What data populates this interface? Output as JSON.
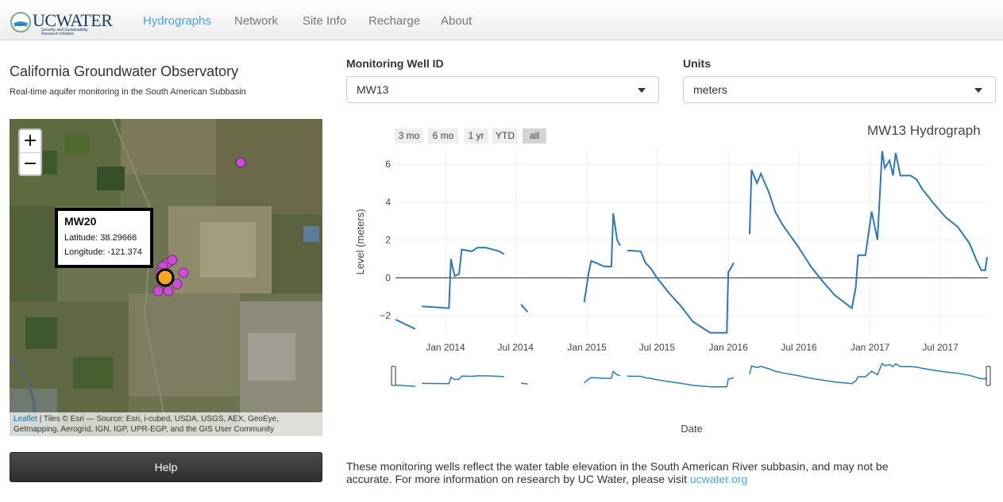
{
  "navbar": {
    "logo_text": "UCWATER",
    "logo_subtitle": "Security and Sustainability Research Initiative",
    "items": [
      {
        "label": "Hydrographs",
        "active": true
      },
      {
        "label": "Network",
        "active": false
      },
      {
        "label": "Site Info",
        "active": false
      },
      {
        "label": "Recharge",
        "active": false
      },
      {
        "label": "About",
        "active": false
      }
    ]
  },
  "sidebar": {
    "title": "California Groundwater Observatory",
    "subtitle": "Real-time aquifer monitoring in the South American Subbasin",
    "map": {
      "zoom_in": "+",
      "zoom_out": "−",
      "popup": {
        "title": "MW20",
        "latitude": "Latitude: 38.29666",
        "longitude": "Longitude: -121.374"
      },
      "attribution_link": "Leaflet",
      "attribution_text": " | Tiles © Esri — Source: Esri, i-cubed, USDA, USGS, AEX, GeoEye, Getmapping, Aerogrid, IGN, IGP, UPR-EGP, and the GIS User Community",
      "marker_colors": {
        "well": "#c74fd1",
        "selected": "#f5a623"
      }
    },
    "help_label": "Help"
  },
  "controls": {
    "well_label": "Monitoring Well ID",
    "well_value": "MW13",
    "units_label": "Units",
    "units_value": "meters"
  },
  "range_buttons": [
    "3 mo",
    "6 mo",
    "1 yr",
    "YTD",
    "all"
  ],
  "range_selected": "all",
  "chart_data": {
    "type": "line",
    "title": "MW13 Hydrograph",
    "xlabel": "Date",
    "ylabel": "Level (meters)",
    "x_ticks": [
      "Jan 2014",
      "Jul 2014",
      "Jan 2015",
      "Jul 2015",
      "Jan 2016",
      "Jul 2016",
      "Jan 2017",
      "Jul 2017"
    ],
    "y_ticks": [
      "−2",
      "0",
      "2",
      "4",
      "6"
    ],
    "ylim": [
      -3.0,
      6.8
    ],
    "line_color": "#2f78b4",
    "segments": [
      [
        [
          "2013-08-25",
          -2.2
        ],
        [
          "2013-10-15",
          -2.7
        ]
      ],
      [
        [
          "2013-11-01",
          -1.5
        ],
        [
          "2014-01-10",
          -1.6
        ],
        [
          "2014-01-15",
          1.0
        ],
        [
          "2014-01-20",
          0.5
        ],
        [
          "2014-01-25",
          0.1
        ],
        [
          "2014-02-05",
          0.2
        ],
        [
          "2014-02-12",
          1.5
        ],
        [
          "2014-03-10",
          1.4
        ],
        [
          "2014-03-25",
          1.6
        ],
        [
          "2014-04-15",
          1.6
        ],
        [
          "2014-05-20",
          1.4
        ],
        [
          "2014-06-01",
          1.25
        ]
      ],
      [
        [
          "2014-07-15",
          -1.4
        ],
        [
          "2014-08-01",
          -1.8
        ]
      ],
      [
        [
          "2014-12-25",
          -1.3
        ],
        [
          "2015-01-05",
          0.2
        ],
        [
          "2015-01-12",
          0.9
        ],
        [
          "2015-02-15",
          0.6
        ],
        [
          "2015-03-05",
          0.6
        ],
        [
          "2015-03-10",
          3.4
        ],
        [
          "2015-03-20",
          2.0
        ],
        [
          "2015-03-28",
          1.7
        ]
      ],
      [
        [
          "2015-04-15",
          1.45
        ],
        [
          "2015-05-20",
          1.4
        ],
        [
          "2015-06-01",
          0.8
        ],
        [
          "2015-06-15",
          0.5
        ],
        [
          "2015-07-01",
          0.0
        ],
        [
          "2015-08-01",
          -0.8
        ],
        [
          "2015-09-01",
          -1.5
        ],
        [
          "2015-10-01",
          -2.3
        ],
        [
          "2015-11-15",
          -2.9
        ],
        [
          "2015-12-28",
          -2.9
        ],
        [
          "2016-01-01",
          0.3
        ],
        [
          "2016-01-10",
          0.6
        ],
        [
          "2016-01-15",
          0.8
        ]
      ],
      [
        [
          "2016-02-25",
          2.3
        ],
        [
          "2016-03-01",
          5.7
        ],
        [
          "2016-03-15",
          5.0
        ],
        [
          "2016-03-25",
          5.5
        ],
        [
          "2016-04-15",
          4.5
        ],
        [
          "2016-05-01",
          3.5
        ],
        [
          "2016-05-20",
          2.8
        ],
        [
          "2016-07-01",
          1.6
        ],
        [
          "2016-08-01",
          0.6
        ],
        [
          "2016-09-01",
          -0.2
        ],
        [
          "2016-10-01",
          -0.9
        ],
        [
          "2016-11-15",
          -1.6
        ],
        [
          "2016-11-25",
          -0.5
        ],
        [
          "2016-12-01",
          1.2
        ],
        [
          "2016-12-20",
          1.2
        ],
        [
          "2017-01-05",
          3.5
        ],
        [
          "2017-01-20",
          2.0
        ],
        [
          "2017-02-01",
          6.7
        ],
        [
          "2017-02-08",
          5.8
        ],
        [
          "2017-02-20",
          6.2
        ],
        [
          "2017-03-01",
          5.4
        ],
        [
          "2017-03-08",
          6.6
        ],
        [
          "2017-03-20",
          5.4
        ],
        [
          "2017-04-15",
          5.4
        ],
        [
          "2017-05-01",
          5.2
        ],
        [
          "2017-05-15",
          4.7
        ],
        [
          "2017-06-15",
          3.9
        ],
        [
          "2017-07-15",
          3.2
        ],
        [
          "2017-08-15",
          2.7
        ],
        [
          "2017-09-15",
          1.8
        ],
        [
          "2017-10-01",
          1.0
        ],
        [
          "2017-10-10",
          0.6
        ],
        [
          "2017-10-15",
          0.4
        ],
        [
          "2017-10-25",
          0.4
        ],
        [
          "2017-10-30",
          1.1
        ]
      ]
    ]
  },
  "footer": {
    "text": "These monitoring wells reflect the water table elevation in the South American River subbasin, and may not be accurate. For more information on research by UC Water, please visit ",
    "link": "ucwater.org"
  }
}
